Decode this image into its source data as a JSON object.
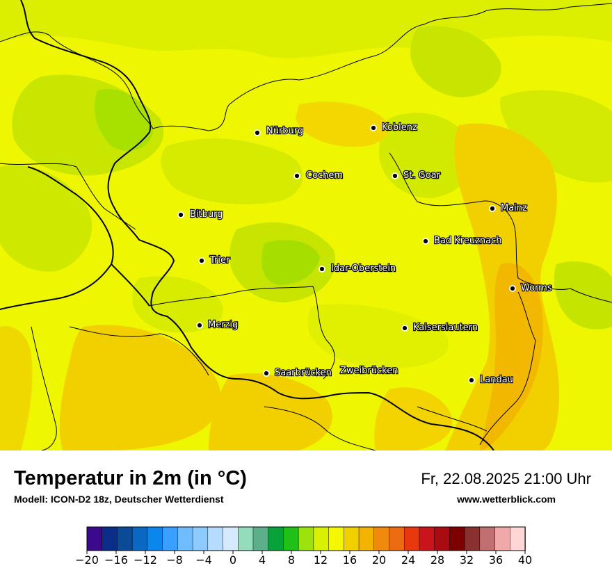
{
  "map": {
    "cities": [
      {
        "name": "Nürburg"
      },
      {
        "name": "Koblenz"
      },
      {
        "name": "Cochem"
      },
      {
        "name": "St. Goar"
      },
      {
        "name": "Mainz"
      },
      {
        "name": "Bitburg"
      },
      {
        "name": "Bad Kreuznach"
      },
      {
        "name": "Trier"
      },
      {
        "name": "Idar-Oberstein"
      },
      {
        "name": "Worms"
      },
      {
        "name": "Merzig"
      },
      {
        "name": "Kaiserslautern"
      },
      {
        "name": "Saarbrücken"
      },
      {
        "name": "Zweibrücken"
      },
      {
        "name": "Landau"
      }
    ]
  },
  "footer": {
    "title": "Temperatur in 2m (in °C)",
    "subtitle": "Modell: ICON-D2 18z, Deutscher Wetterdienst",
    "datetime": "Fr, 22.08.2025 21:00 Uhr",
    "website": "www.wetterblick.com"
  },
  "legend": {
    "tick_labels": [
      "−20",
      "−16",
      "−12",
      "−8",
      "−4",
      "0",
      "4",
      "8",
      "12",
      "16",
      "20",
      "24",
      "28",
      "32",
      "36",
      "40"
    ],
    "colors": [
      "#3b0a8c",
      "#0b2d8a",
      "#0a4a96",
      "#0a67c2",
      "#0a86ec",
      "#3aa0ff",
      "#6fbcff",
      "#8ccaff",
      "#b3dcff",
      "#d5eaff",
      "#94dcbb",
      "#5caf8a",
      "#08a13a",
      "#20c016",
      "#9de20c",
      "#d9f000",
      "#f5f700",
      "#f2d000",
      "#f2b400",
      "#f08a0e",
      "#ee6c10",
      "#e8380e",
      "#c8141a",
      "#a80c10",
      "#7c0000",
      "#8a3030",
      "#c07070",
      "#f0a8a8",
      "#ffd6d6"
    ],
    "range_min": -20,
    "range_max": 40
  }
}
